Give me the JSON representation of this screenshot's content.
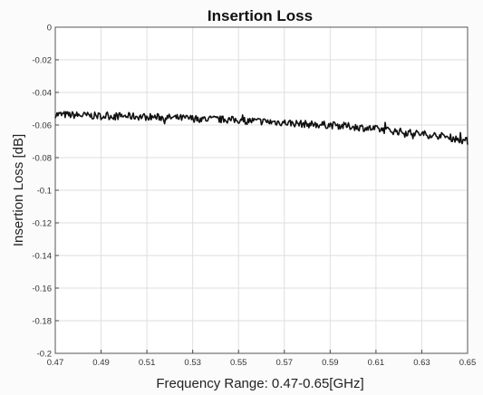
{
  "chart_data": {
    "type": "line",
    "title": "Insertion Loss",
    "xlabel": "Frequency Range: 0.47-0.65[GHz]",
    "ylabel": "Insertion Loss [dB]",
    "xlim": [
      0.47,
      0.65
    ],
    "ylim": [
      -0.2,
      0
    ],
    "xticks": [
      "0.47",
      "0.49",
      "0.51",
      "0.53",
      "0.55",
      "0.57",
      "0.59",
      "0.61",
      "0.63",
      "0.65"
    ],
    "yticks": [
      "0",
      "-0.02",
      "-0.04",
      "-0.06",
      "-0.08",
      "-0.1",
      "-0.12",
      "-0.14",
      "-0.16",
      "-0.18",
      "-0.2"
    ],
    "grid": true,
    "series": [
      {
        "color": "#111111",
        "x": [
          0.47,
          0.48,
          0.49,
          0.5,
          0.51,
          0.52,
          0.53,
          0.54,
          0.55,
          0.56,
          0.57,
          0.58,
          0.59,
          0.6,
          0.61,
          0.62,
          0.63,
          0.64,
          0.65
        ],
        "y": [
          -0.0535,
          -0.054,
          -0.0545,
          -0.0545,
          -0.055,
          -0.0555,
          -0.056,
          -0.0565,
          -0.057,
          -0.0578,
          -0.0585,
          -0.0595,
          -0.06,
          -0.061,
          -0.0625,
          -0.064,
          -0.0655,
          -0.067,
          -0.07
        ]
      }
    ]
  }
}
